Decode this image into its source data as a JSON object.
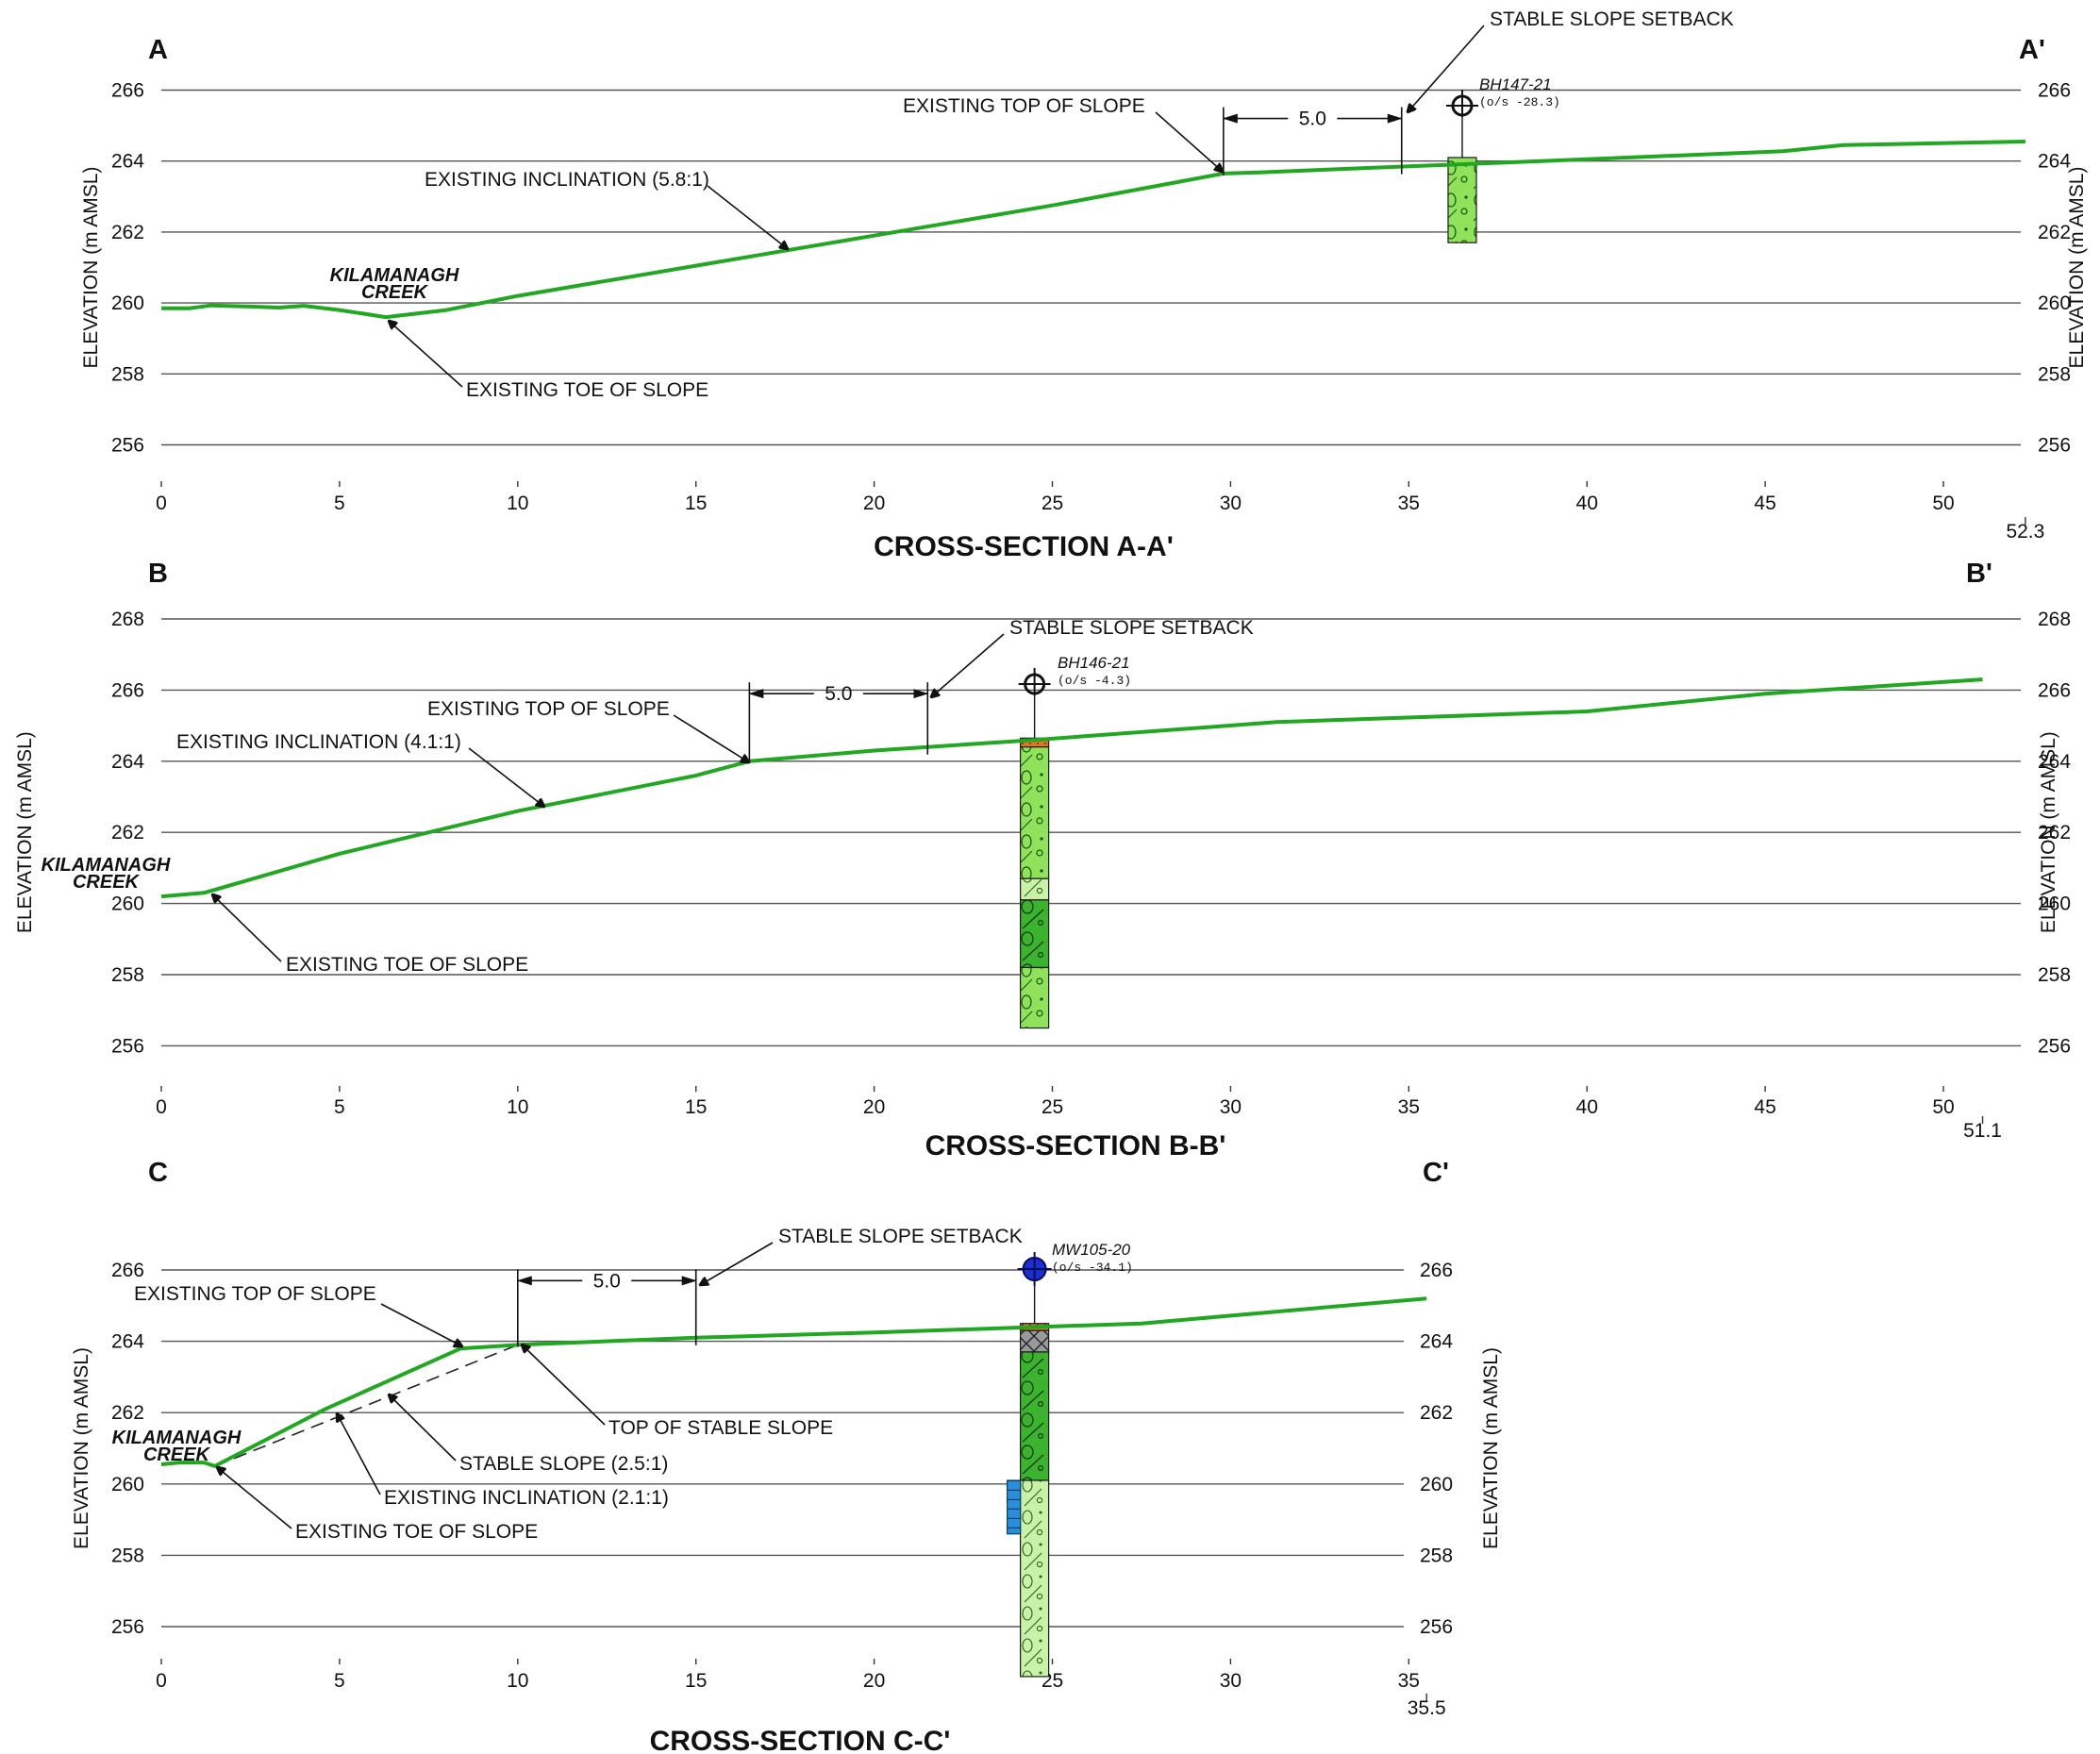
{
  "axis_label": "ELEVATION (m AMSL)",
  "colors": {
    "ground": "#22a722",
    "topsoil": "#e2751f",
    "gravel_light": "#8fe25a",
    "gravel_dark": "#3cb32e",
    "gravel_pale": "#c8f2a8",
    "fill": "#9a9a9a",
    "screen": "#2a8fd8",
    "monitoring_well": "#1a2fd0"
  },
  "chart_data": [
    {
      "type": "line",
      "title": "CROSS-SECTION A-A'",
      "start_label": "A",
      "end_label": "A'",
      "ylabel": "ELEVATION (m AMSL)",
      "x_ticks": [
        0,
        5,
        10,
        15,
        20,
        25,
        30,
        35,
        40,
        45,
        50
      ],
      "x_end": 52.3,
      "x_end_label": "52.3",
      "y_ticks": [
        256,
        258,
        260,
        262,
        264,
        266
      ],
      "ground_profile": {
        "x": [
          0,
          0.8,
          1.4,
          2.5,
          3.3,
          4,
          5,
          6.3,
          8,
          10,
          15,
          20,
          25,
          29.8,
          30.8,
          35,
          40,
          45.5,
          47.2,
          52.3
        ],
        "y": [
          259.85,
          259.85,
          259.93,
          259.9,
          259.87,
          259.92,
          259.8,
          259.6,
          259.8,
          260.2,
          261.05,
          261.9,
          262.75,
          263.65,
          263.68,
          263.85,
          264.05,
          264.28,
          264.45,
          264.55
        ]
      },
      "creek_label": [
        "KILAMANAGH",
        "CREEK"
      ],
      "annotations": [
        {
          "text": "EXISTING INCLINATION (5.8:1)",
          "x": 17.5,
          "y": 261.5
        },
        {
          "text": "EXISTING TOE OF SLOPE",
          "x": 6.3,
          "y": 259.6
        },
        {
          "text": "EXISTING TOP OF SLOPE",
          "x": 29.8,
          "y": 263.7
        },
        {
          "text": "STABLE SLOPE SETBACK",
          "x": 34.8,
          "y": 265.3
        }
      ],
      "setback": {
        "x1": 29.8,
        "x2": 34.8,
        "label": "5.0",
        "y": 265.2
      },
      "borehole": {
        "name": "BH147-21",
        "offset": "(o/s -28.3)",
        "well_type": "borehole",
        "x": 36.5,
        "top": 264.1,
        "bottom": 261.7,
        "layers": [
          {
            "material": "gravel_light",
            "top": 264.1,
            "bottom": 261.7
          }
        ]
      }
    },
    {
      "type": "line",
      "title": "CROSS-SECTION B-B'",
      "start_label": "B",
      "end_label": "B'",
      "ylabel": "ELEVATION (m AMSL)",
      "x_ticks": [
        0,
        5,
        10,
        15,
        20,
        25,
        30,
        35,
        40,
        45,
        50
      ],
      "x_end": 51.1,
      "x_end_label": "51.1",
      "y_ticks": [
        256,
        258,
        260,
        262,
        264,
        266,
        268
      ],
      "ground_profile": {
        "x": [
          0,
          1.2,
          5,
          10,
          15,
          16.5,
          20,
          24.5,
          31.3,
          40,
          45,
          51.1
        ],
        "y": [
          260.2,
          260.3,
          261.4,
          262.6,
          263.6,
          264.0,
          264.3,
          264.6,
          265.1,
          265.4,
          265.9,
          266.3
        ]
      },
      "creek_label": [
        "KILAMANAGH",
        "CREEK"
      ],
      "annotations": [
        {
          "text": "EXISTING INCLINATION (4.1:1)",
          "x": 10.5,
          "y": 262.5
        },
        {
          "text": "EXISTING TOE OF SLOPE",
          "x": 1.2,
          "y": 260.3
        },
        {
          "text": "EXISTING TOP OF SLOPE",
          "x": 16.5,
          "y": 264.0
        },
        {
          "text": "STABLE SLOPE SETBACK",
          "x": 21.5,
          "y": 265.8
        }
      ],
      "setback": {
        "x1": 16.5,
        "x2": 21.5,
        "label": "5.0",
        "y": 265.9
      },
      "borehole": {
        "name": "BH146-21",
        "offset": "(o/s -4.3)",
        "well_type": "borehole",
        "x": 24.5,
        "top": 264.65,
        "bottom": 256.5,
        "layers": [
          {
            "material": "topsoil",
            "top": 264.65,
            "bottom": 264.4
          },
          {
            "material": "gravel_light",
            "top": 264.4,
            "bottom": 260.7
          },
          {
            "material": "gravel_pale",
            "top": 260.7,
            "bottom": 260.1
          },
          {
            "material": "gravel_dark",
            "top": 260.1,
            "bottom": 258.2
          },
          {
            "material": "gravel_light",
            "top": 258.2,
            "bottom": 256.5
          }
        ]
      }
    },
    {
      "type": "line",
      "title": "CROSS-SECTION C-C'",
      "start_label": "C",
      "end_label": "C'",
      "ylabel": "ELEVATION (m AMSL)",
      "x_ticks": [
        0,
        5,
        10,
        15,
        20,
        25,
        30,
        35
      ],
      "x_end": 35.5,
      "x_end_label": "35.5",
      "y_ticks": [
        256,
        258,
        260,
        262,
        264,
        266
      ],
      "ground_profile": {
        "x": [
          0,
          0.5,
          1.2,
          1.5,
          4.6,
          8.4,
          10,
          15,
          20,
          24.5,
          27.5,
          35.5
        ],
        "y": [
          260.55,
          260.6,
          260.6,
          260.5,
          262.1,
          263.8,
          263.9,
          264.1,
          264.25,
          264.4,
          264.5,
          265.2
        ]
      },
      "stable_slope": {
        "x": [
          1.5,
          10
        ],
        "y": [
          260.5,
          263.9
        ]
      },
      "creek_label": [
        "KILAMANAGH",
        "CREEK"
      ],
      "annotations": [
        {
          "text": "EXISTING TOP OF SLOPE",
          "x": 8.4,
          "y": 263.8
        },
        {
          "text": "TOP OF STABLE SLOPE",
          "x": 10,
          "y": 263.9
        },
        {
          "text": "STABLE SLOPE (2.5:1)",
          "x": 6.3,
          "y": 262.4
        },
        {
          "text": "EXISTING INCLINATION (2.1:1)",
          "x": 4.8,
          "y": 262.0
        },
        {
          "text": "EXISTING TOE OF SLOPE",
          "x": 1.5,
          "y": 260.5
        },
        {
          "text": "STABLE SLOPE SETBACK",
          "x": 15,
          "y": 265.7
        }
      ],
      "setback": {
        "x1": 10,
        "x2": 15,
        "label": "5.0",
        "y": 265.7
      },
      "borehole": {
        "name": "MW105-20",
        "offset": "(o/s -34.1)",
        "well_type": "monitoring_well",
        "x": 24.5,
        "top": 264.5,
        "bottom": 254.6,
        "layers": [
          {
            "material": "topsoil",
            "top": 264.5,
            "bottom": 264.3
          },
          {
            "material": "fill",
            "top": 264.3,
            "bottom": 263.7
          },
          {
            "material": "gravel_dark",
            "top": 263.7,
            "bottom": 260.1
          },
          {
            "material": "gravel_pale",
            "top": 260.1,
            "bottom": 254.6
          }
        ],
        "screen": {
          "top": 260.1,
          "bottom": 258.6
        }
      }
    }
  ]
}
